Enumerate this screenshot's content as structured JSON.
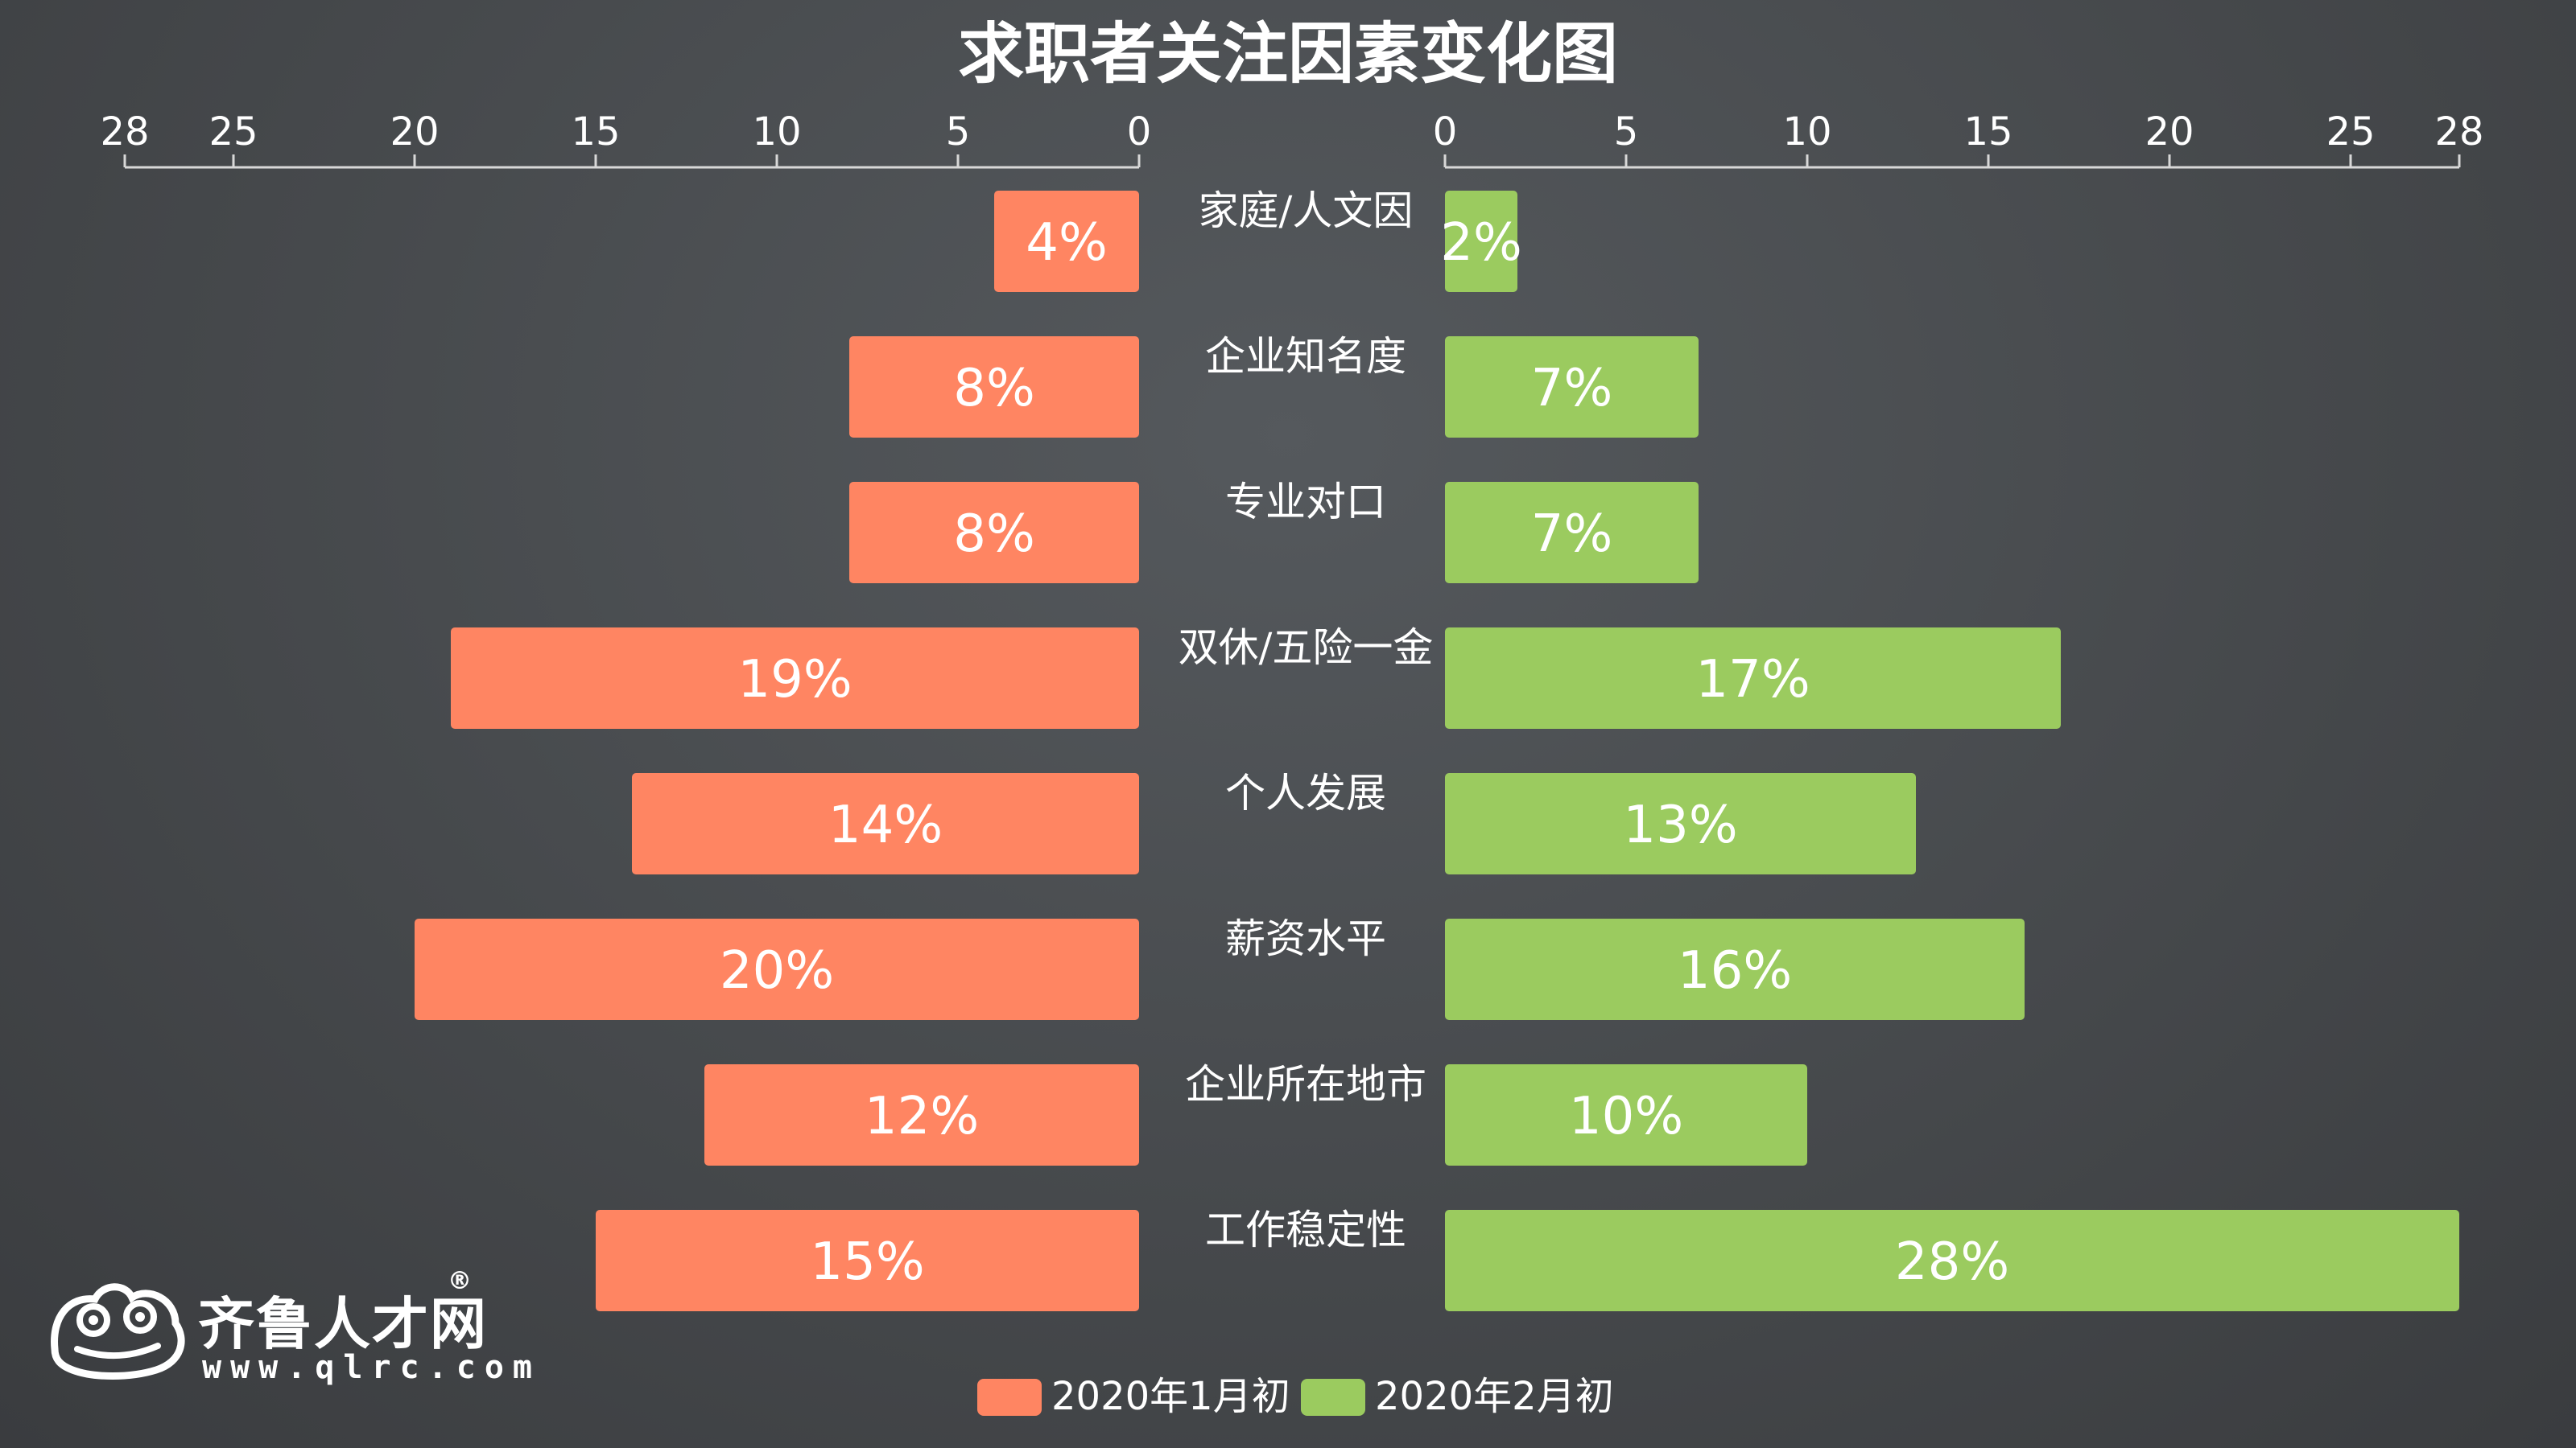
{
  "chart_data": {
    "type": "bar",
    "title": "求职者关注因素变化图",
    "categories": [
      "家庭/人文因",
      "企业知名度",
      "专业对口",
      "双休/五险一金",
      "个人发展",
      "薪资水平",
      "企业所在地市",
      "工作稳定性"
    ],
    "series": [
      {
        "name": "2020年1月初",
        "values": [
          4,
          8,
          8,
          19,
          14,
          20,
          12,
          15
        ],
        "labels": [
          "4%",
          "8%",
          "8%",
          "19%",
          "14%",
          "20%",
          "12%",
          "15%"
        ],
        "color": "#ff8562"
      },
      {
        "name": "2020年2月初",
        "values": [
          2,
          7,
          7,
          17,
          13,
          16,
          10,
          28
        ],
        "labels": [
          "2%",
          "7%",
          "7%",
          "17%",
          "13%",
          "16%",
          "10%",
          "28%"
        ],
        "color": "#9bcb5f"
      }
    ],
    "xlim": [
      0,
      28
    ],
    "ticks": [
      28,
      25,
      20,
      15,
      10,
      5,
      0
    ],
    "ticks_right": [
      0,
      5,
      10,
      15,
      20,
      25,
      28
    ],
    "legend_position": "bottom",
    "grid": false
  },
  "logo": {
    "name": "齐鲁人才",
    "suffix": "网",
    "registered": "®",
    "url": "www.qlrc.com"
  }
}
